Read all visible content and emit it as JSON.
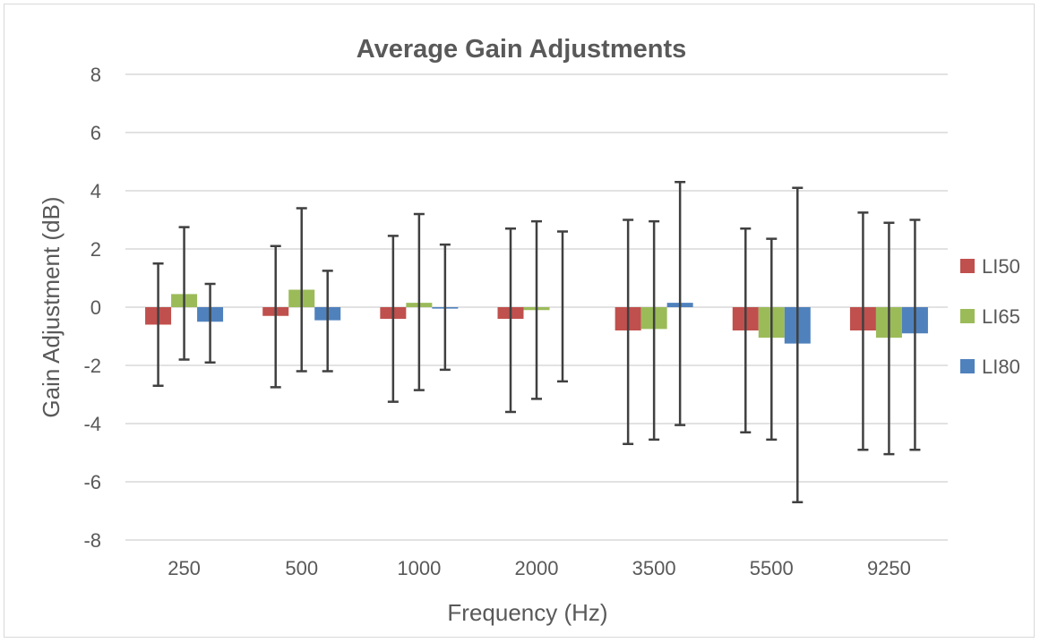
{
  "chart_data": {
    "type": "bar",
    "title": "Average Gain Adjustments",
    "xlabel": "Frequency (Hz)",
    "ylabel": "Gain Adjustment (dB)",
    "ylim": [
      -8,
      8
    ],
    "yticks": [
      "8",
      "6",
      "4",
      "2",
      "0",
      "-2",
      "-4",
      "-6",
      "-8"
    ],
    "categories": [
      "250",
      "500",
      "1000",
      "2000",
      "3500",
      "5500",
      "9250"
    ],
    "grid": true,
    "legend_position": "right",
    "series": [
      {
        "name": "LI50",
        "color": "#c0504d",
        "values": [
          -0.6,
          -0.3,
          -0.4,
          -0.4,
          -0.8,
          -0.8,
          -0.8
        ],
        "error_upper": [
          1.5,
          2.1,
          2.45,
          2.7,
          3.0,
          2.7,
          3.25
        ],
        "error_lower": [
          -2.7,
          -2.75,
          -3.25,
          -3.6,
          -4.7,
          -4.3,
          -4.9
        ]
      },
      {
        "name": "LI65",
        "color": "#9bbb59",
        "values": [
          0.45,
          0.6,
          0.15,
          -0.1,
          -0.75,
          -1.05,
          -1.05
        ],
        "error_upper": [
          2.75,
          3.4,
          3.2,
          2.95,
          2.95,
          2.35,
          2.9
        ],
        "error_lower": [
          -1.8,
          -2.2,
          -2.85,
          -3.15,
          -4.55,
          -4.55,
          -5.05
        ]
      },
      {
        "name": "LI80",
        "color": "#4f81bd",
        "values": [
          -0.5,
          -0.45,
          -0.05,
          0.0,
          0.15,
          -1.25,
          -0.9
        ],
        "error_upper": [
          0.8,
          1.25,
          2.15,
          2.6,
          4.3,
          4.1,
          3.0
        ],
        "error_lower": [
          -1.9,
          -2.2,
          -2.15,
          -2.55,
          -4.05,
          -6.7,
          -4.9
        ]
      }
    ]
  }
}
